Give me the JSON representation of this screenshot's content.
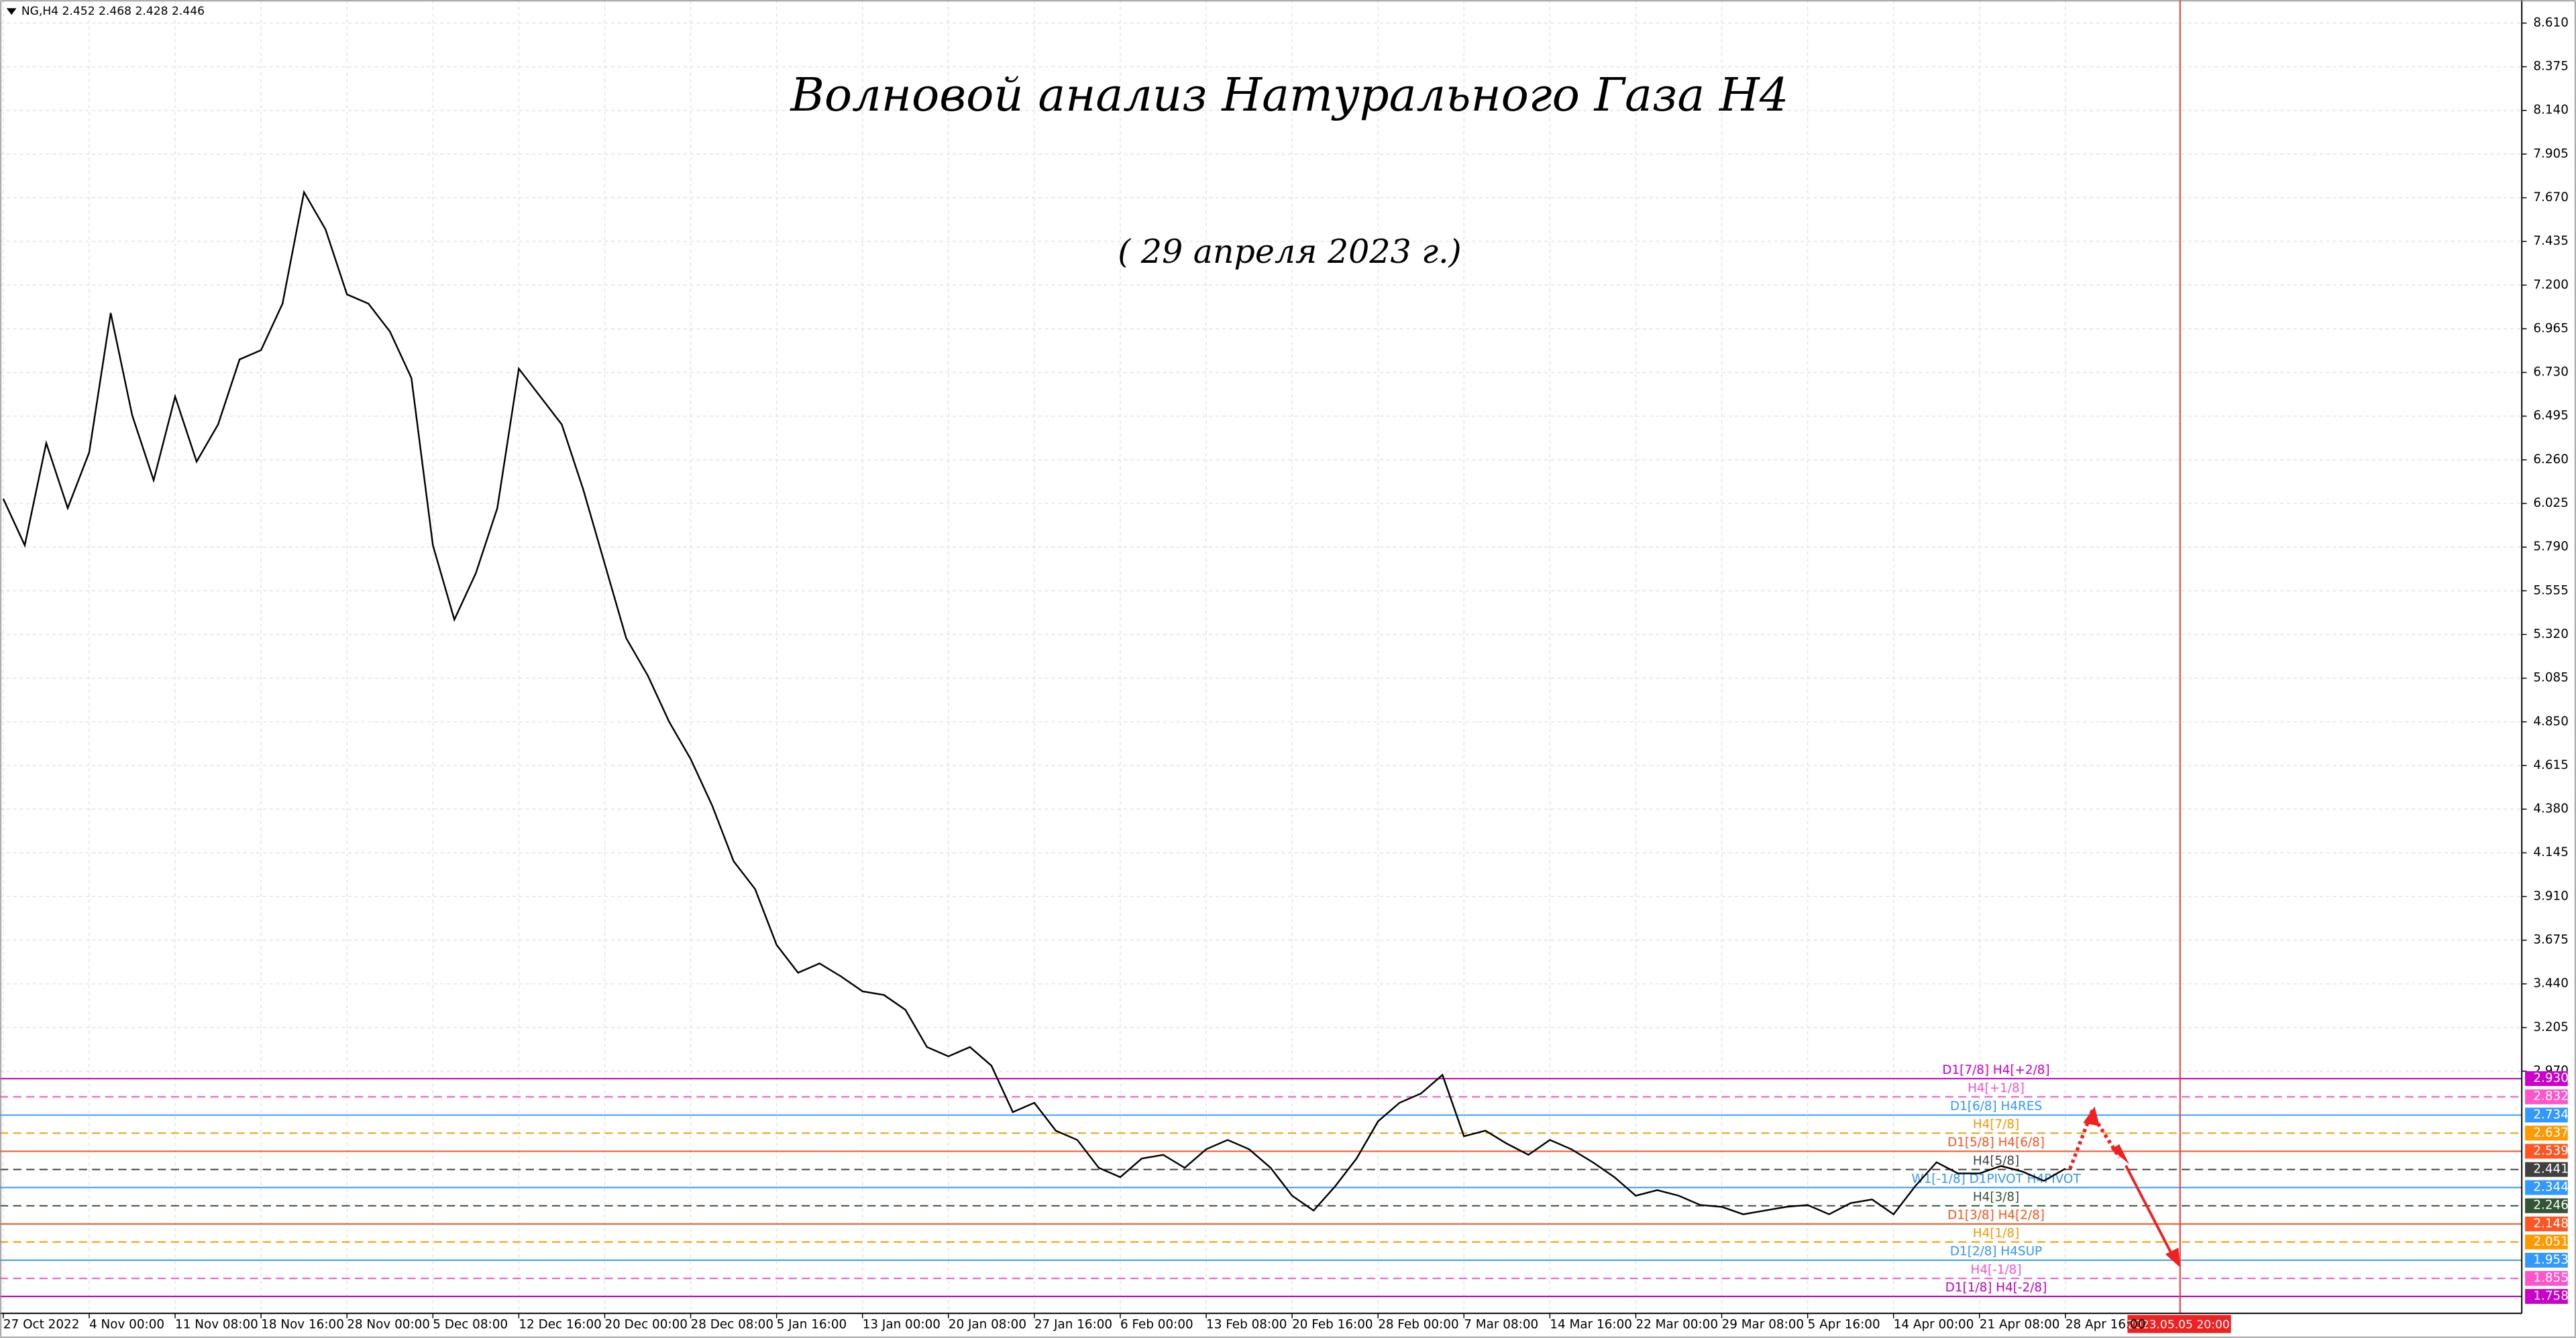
{
  "header": "NG,H4  2.452 2.468 2.428 2.446",
  "chart_data": {
    "type": "line",
    "title": "Волновой анализ Натурального Газа H4",
    "subtitle": "( 29 апреля 2023 г.)",
    "categories": [
      "27 Oct 2022",
      null,
      null,
      null,
      "4 Nov 00:00",
      null,
      null,
      null,
      "11 Nov 08:00",
      null,
      null,
      null,
      "18 Nov 16:00",
      null,
      null,
      null,
      "28 Nov 00:00",
      null,
      null,
      null,
      "5 Dec 08:00",
      null,
      null,
      null,
      "12 Dec 16:00",
      null,
      null,
      null,
      "20 Dec 00:00",
      null,
      null,
      null,
      "28 Dec 08:00",
      null,
      null,
      null,
      "5 Jan 16:00",
      null,
      null,
      null,
      "13 Jan 00:00",
      null,
      null,
      null,
      "20 Jan 08:00",
      null,
      null,
      null,
      "27 Jan 16:00",
      null,
      null,
      null,
      "6 Feb 00:00",
      null,
      null,
      null,
      "13 Feb 08:00",
      null,
      null,
      null,
      "20 Feb 16:00",
      null,
      null,
      null,
      "28 Feb 00:00",
      null,
      null,
      null,
      "7 Mar 08:00",
      null,
      null,
      null,
      "14 Mar 16:00",
      null,
      null,
      null,
      "22 Mar 00:00",
      null,
      null,
      null,
      "29 Mar 08:00",
      null,
      null,
      null,
      "5 Apr 16:00",
      null,
      null,
      null,
      "14 Apr 00:00",
      null,
      null,
      null,
      "21 Apr 08:00",
      null,
      null,
      null,
      "28 Apr 16:00"
    ],
    "series": [
      {
        "color": "#000000",
        "values": [
          6.05,
          5.8,
          6.35,
          6.0,
          6.3,
          7.05,
          6.5,
          6.15,
          6.6,
          6.25,
          6.45,
          6.8,
          6.85,
          7.1,
          7.7,
          7.5,
          7.15,
          7.1,
          6.95,
          6.7,
          5.8,
          5.4,
          5.65,
          6.0,
          6.75,
          6.6,
          6.45,
          6.1,
          5.7,
          5.3,
          5.1,
          4.85,
          4.65,
          4.4,
          4.1,
          3.95,
          3.65,
          3.5,
          3.55,
          3.48,
          3.4,
          3.38,
          3.3,
          3.1,
          3.05,
          3.1,
          3.0,
          2.75,
          2.8,
          2.65,
          2.6,
          2.45,
          2.4,
          2.5,
          2.52,
          2.45,
          2.55,
          2.6,
          2.55,
          2.45,
          2.3,
          2.22,
          2.35,
          2.5,
          2.7,
          2.8,
          2.85,
          2.95,
          2.62,
          2.65,
          2.58,
          2.52,
          2.6,
          2.55,
          2.48,
          2.4,
          2.3,
          2.33,
          2.3,
          2.25,
          2.24,
          2.2,
          2.22,
          2.24,
          2.25,
          2.2,
          2.26,
          2.28,
          2.2,
          2.35,
          2.48,
          2.42,
          2.42,
          2.46,
          2.43,
          2.38,
          2.446
        ]
      }
    ],
    "ylim": [
      1.667,
      8.734
    ],
    "yticks": [
      {
        "value": 8.61,
        "label": "8.610"
      },
      {
        "value": 8.375,
        "label": "8.375"
      },
      {
        "value": 8.14,
        "label": "8.140"
      },
      {
        "value": 7.905,
        "label": "7.905"
      },
      {
        "value": 7.67,
        "label": "7.670"
      },
      {
        "value": 7.435,
        "label": "7.435"
      },
      {
        "value": 7.2,
        "label": "7.200"
      },
      {
        "value": 6.965,
        "label": "6.965"
      },
      {
        "value": 6.73,
        "label": "6.730"
      },
      {
        "value": 6.495,
        "label": "6.495"
      },
      {
        "value": 6.26,
        "label": "6.260"
      },
      {
        "value": 6.025,
        "label": "6.025"
      },
      {
        "value": 5.79,
        "label": "5.790"
      },
      {
        "value": 5.555,
        "label": "5.555"
      },
      {
        "value": 5.32,
        "label": "5.320"
      },
      {
        "value": 5.085,
        "label": "5.085"
      },
      {
        "value": 4.85,
        "label": "4.850"
      },
      {
        "value": 4.615,
        "label": "4.615"
      },
      {
        "value": 4.38,
        "label": "4.380"
      },
      {
        "value": 4.145,
        "label": "4.145"
      },
      {
        "value": 3.91,
        "label": "3.910"
      },
      {
        "value": 3.675,
        "label": "3.675"
      },
      {
        "value": 3.44,
        "label": "3.440"
      },
      {
        "value": 3.205,
        "label": "3.205"
      },
      {
        "value": 2.97,
        "label": "2.970"
      }
    ],
    "grid": true,
    "levels": [
      {
        "name": "D1[7/8] H4[+2/8]",
        "value": 2.93,
        "value_label": "2.930",
        "color": "#cc00cc",
        "dashed": false
      },
      {
        "name": "H4[+1/8]",
        "value": 2.832,
        "value_label": "2.832",
        "color": "#ff55cc",
        "dashed": true
      },
      {
        "name": "D1[6/8] H4RES",
        "value": 2.734,
        "value_label": "2.734",
        "color": "#3399ff",
        "dashed": false
      },
      {
        "name": "H4[7/8]",
        "value": 2.637,
        "value_label": "2.637",
        "color": "#ff9900",
        "dashed": true
      },
      {
        "name": "D1[5/8] H4[6/8]",
        "value": 2.539,
        "value_label": "2.539",
        "color": "#ff5522",
        "dashed": false
      },
      {
        "name": "H4[5/8]",
        "value": 2.441,
        "value_label": "2.441",
        "color": "#404040",
        "dashed": true
      },
      {
        "name": "W1[-1/8] D1PIVOT H4PIVOT",
        "value": 2.344,
        "value_label": "2.344",
        "color": "#3399ff",
        "dashed": false
      },
      {
        "name": "H4[3/8]",
        "value": 2.246,
        "value_label": "2.246",
        "color": "#335533",
        "dashed": true
      },
      {
        "name": "D1[3/8] H4[2/8]",
        "value": 2.148,
        "value_label": "2.148",
        "color": "#ff5522",
        "dashed": false
      },
      {
        "name": "H4[1/8]",
        "value": 2.051,
        "value_label": "2.051",
        "color": "#ff9900",
        "dashed": true
      },
      {
        "name": "D1[2/8] H4SUP",
        "value": 1.953,
        "value_label": "1.953",
        "color": "#3399ff",
        "dashed": false
      },
      {
        "name": "H4[-1/8]",
        "value": 1.855,
        "value_label": "1.855",
        "color": "#ff55cc",
        "dashed": true
      },
      {
        "name": "D1[1/8] H4[-2/8]",
        "value": 1.758,
        "value_label": "1.758",
        "color": "#cc00cc",
        "dashed": false
      }
    ],
    "future_marker": "2023.05.05 20:00"
  }
}
